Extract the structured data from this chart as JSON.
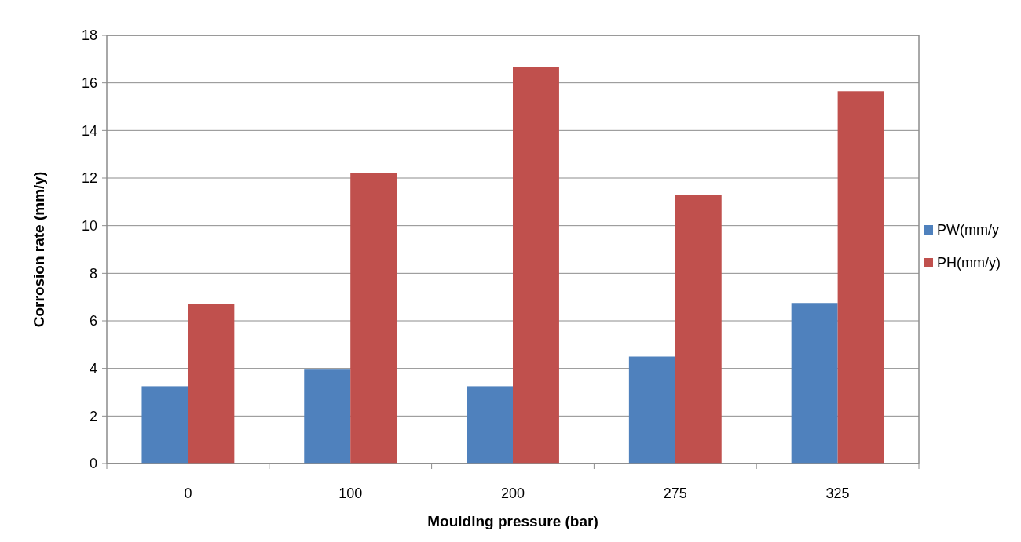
{
  "chart_data": {
    "type": "bar",
    "xlabel": "Moulding pressure (bar)",
    "ylabel": "Corrosion rate (mm/y)",
    "categories": [
      "0",
      "100",
      "200",
      "275",
      "325"
    ],
    "series": [
      {
        "name": "PW(mm/y",
        "color": "#4f81bd",
        "values": [
          3.25,
          3.95,
          3.25,
          4.5,
          6.75
        ]
      },
      {
        "name": "PH(mm/y)",
        "color": "#c0504d",
        "values": [
          6.7,
          12.2,
          16.65,
          11.3,
          15.65
        ]
      }
    ],
    "ylim": [
      0,
      18
    ],
    "yticks": [
      0,
      2,
      4,
      6,
      8,
      10,
      12,
      14,
      16,
      18
    ],
    "grid": "y",
    "legend": "right"
  }
}
